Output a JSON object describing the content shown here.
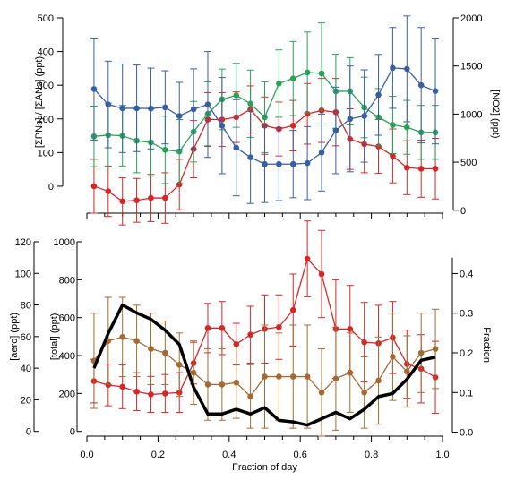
{
  "chart_data": [
    {
      "type": "line",
      "title": "",
      "x": [
        0.02,
        0.06,
        0.1,
        0.14,
        0.18,
        0.22,
        0.26,
        0.3,
        0.34,
        0.38,
        0.42,
        0.46,
        0.5,
        0.54,
        0.58,
        0.62,
        0.66,
        0.7,
        0.74,
        0.78,
        0.82,
        0.86,
        0.9,
        0.94,
        0.98
      ],
      "xlim": [
        0,
        1
      ],
      "ylabel_left": "[ΣPNs] / [ΣANs] (ppt)",
      "ylim_left": [
        -80,
        500
      ],
      "yticks_left": [
        "0",
        "100",
        "200",
        "300",
        "400",
        "500"
      ],
      "ylabel_right": "[NO2] (ppt)",
      "ylim_right": [
        -30,
        2000
      ],
      "yticks_right": [
        "0",
        "500",
        "1000",
        "1500",
        "2000"
      ],
      "series": [
        {
          "axis": "left",
          "color": "#d62728",
          "values": [
            0,
            -15,
            -45,
            -42,
            -35,
            -35,
            5,
            110,
            198,
            198,
            205,
            228,
            180,
            170,
            180,
            215,
            225,
            220,
            140,
            125,
            118,
            90,
            55,
            52,
            52
          ],
          "err": [
            80,
            75,
            70,
            65,
            70,
            75,
            75,
            85,
            80,
            80,
            75,
            70,
            85,
            80,
            75,
            90,
            95,
            100,
            90,
            85,
            80,
            80,
            80,
            85,
            90
          ]
        },
        {
          "axis": "left",
          "color": "#2ca05a",
          "values": [
            148,
            152,
            150,
            135,
            130,
            108,
            103,
            162,
            215,
            258,
            270,
            245,
            205,
            305,
            320,
            338,
            335,
            282,
            282,
            234,
            205,
            182,
            175,
            160,
            160
          ],
          "err": [
            90,
            95,
            90,
            95,
            100,
            100,
            95,
            90,
            95,
            90,
            95,
            100,
            105,
            100,
            110,
            120,
            150,
            110,
            100,
            90,
            85,
            85,
            80,
            80,
            80
          ]
        },
        {
          "axis": "right",
          "color": "#3a5fa0",
          "values": [
            1260,
            1100,
            1060,
            1060,
            1058,
            1070,
            980,
            1050,
            1100,
            880,
            650,
            550,
            480,
            480,
            480,
            490,
            600,
            830,
            950,
            980,
            1200,
            1480,
            1470,
            1300,
            1240
          ],
          "err": [
            530,
            450,
            460,
            450,
            420,
            380,
            350,
            420,
            550,
            500,
            500,
            480,
            400,
            380,
            350,
            380,
            400,
            450,
            550,
            480,
            420,
            420,
            550,
            600,
            550
          ]
        }
      ]
    },
    {
      "type": "line",
      "title": "",
      "x": [
        0.02,
        0.06,
        0.1,
        0.14,
        0.18,
        0.22,
        0.26,
        0.3,
        0.34,
        0.38,
        0.42,
        0.46,
        0.5,
        0.54,
        0.58,
        0.62,
        0.66,
        0.7,
        0.74,
        0.78,
        0.82,
        0.86,
        0.9,
        0.94,
        0.98
      ],
      "xlim": [
        0,
        1
      ],
      "xlabel": "Fraction of day",
      "xticks": [
        "0.0",
        "0.2",
        "0.4",
        "0.6",
        "0.8",
        "1.0"
      ],
      "ylabel_left_outer": "[aero] (ppt)",
      "ylim_left_outer": [
        -3,
        120
      ],
      "yticks_left_outer": [
        "0",
        "20",
        "40",
        "60",
        "80",
        "100",
        "120"
      ],
      "ylabel_left_inner": "[total] (ppt)",
      "ylim_left_inner": [
        -25,
        1000
      ],
      "yticks_left_inner": [
        "0",
        "200",
        "400",
        "600",
        "800",
        "1000"
      ],
      "ylabel_right": "Fraction",
      "ylim_right": [
        -0.01,
        0.48
      ],
      "yticks_right": [
        "0.0",
        "0.1",
        "0.2",
        "0.3",
        "0.4"
      ],
      "series": [
        {
          "axis": "left_inner",
          "color": "#d62728",
          "values": [
            265,
            245,
            235,
            210,
            195,
            200,
            205,
            360,
            545,
            545,
            460,
            510,
            540,
            550,
            640,
            910,
            830,
            540,
            540,
            470,
            465,
            495,
            355,
            330,
            285
          ],
          "err": [
            115,
            110,
            115,
            100,
            95,
            100,
            105,
            110,
            130,
            140,
            110,
            150,
            180,
            170,
            190,
            200,
            230,
            260,
            230,
            210,
            200,
            190,
            180,
            180,
            190
          ]
        },
        {
          "axis": "right",
          "color": "#a36a34",
          "values": [
            0.18,
            0.23,
            0.24,
            0.23,
            0.21,
            0.2,
            0.17,
            0.15,
            0.12,
            0.12,
            0.125,
            0.09,
            0.14,
            0.14,
            0.14,
            0.14,
            0.1,
            0.135,
            0.15,
            0.1,
            0.13,
            0.19,
            0.153,
            0.2,
            0.21
          ],
          "err": [
            0.12,
            0.11,
            0.1,
            0.09,
            0.09,
            0.08,
            0.08,
            0.08,
            0.09,
            0.09,
            0.09,
            0.08,
            0.13,
            0.11,
            0.13,
            0.13,
            0.11,
            0.13,
            0.1,
            0.09,
            0.11,
            0.11,
            0.09,
            0.1,
            0.1
          ]
        },
        {
          "axis": "left_outer",
          "color": "#000000",
          "thick": true,
          "values": [
            40,
            62,
            80,
            75,
            71,
            64,
            55,
            28,
            11,
            11,
            14,
            11,
            15,
            7,
            6,
            4,
            8,
            12,
            8,
            14,
            22,
            24,
            33,
            45,
            47
          ]
        }
      ]
    }
  ]
}
